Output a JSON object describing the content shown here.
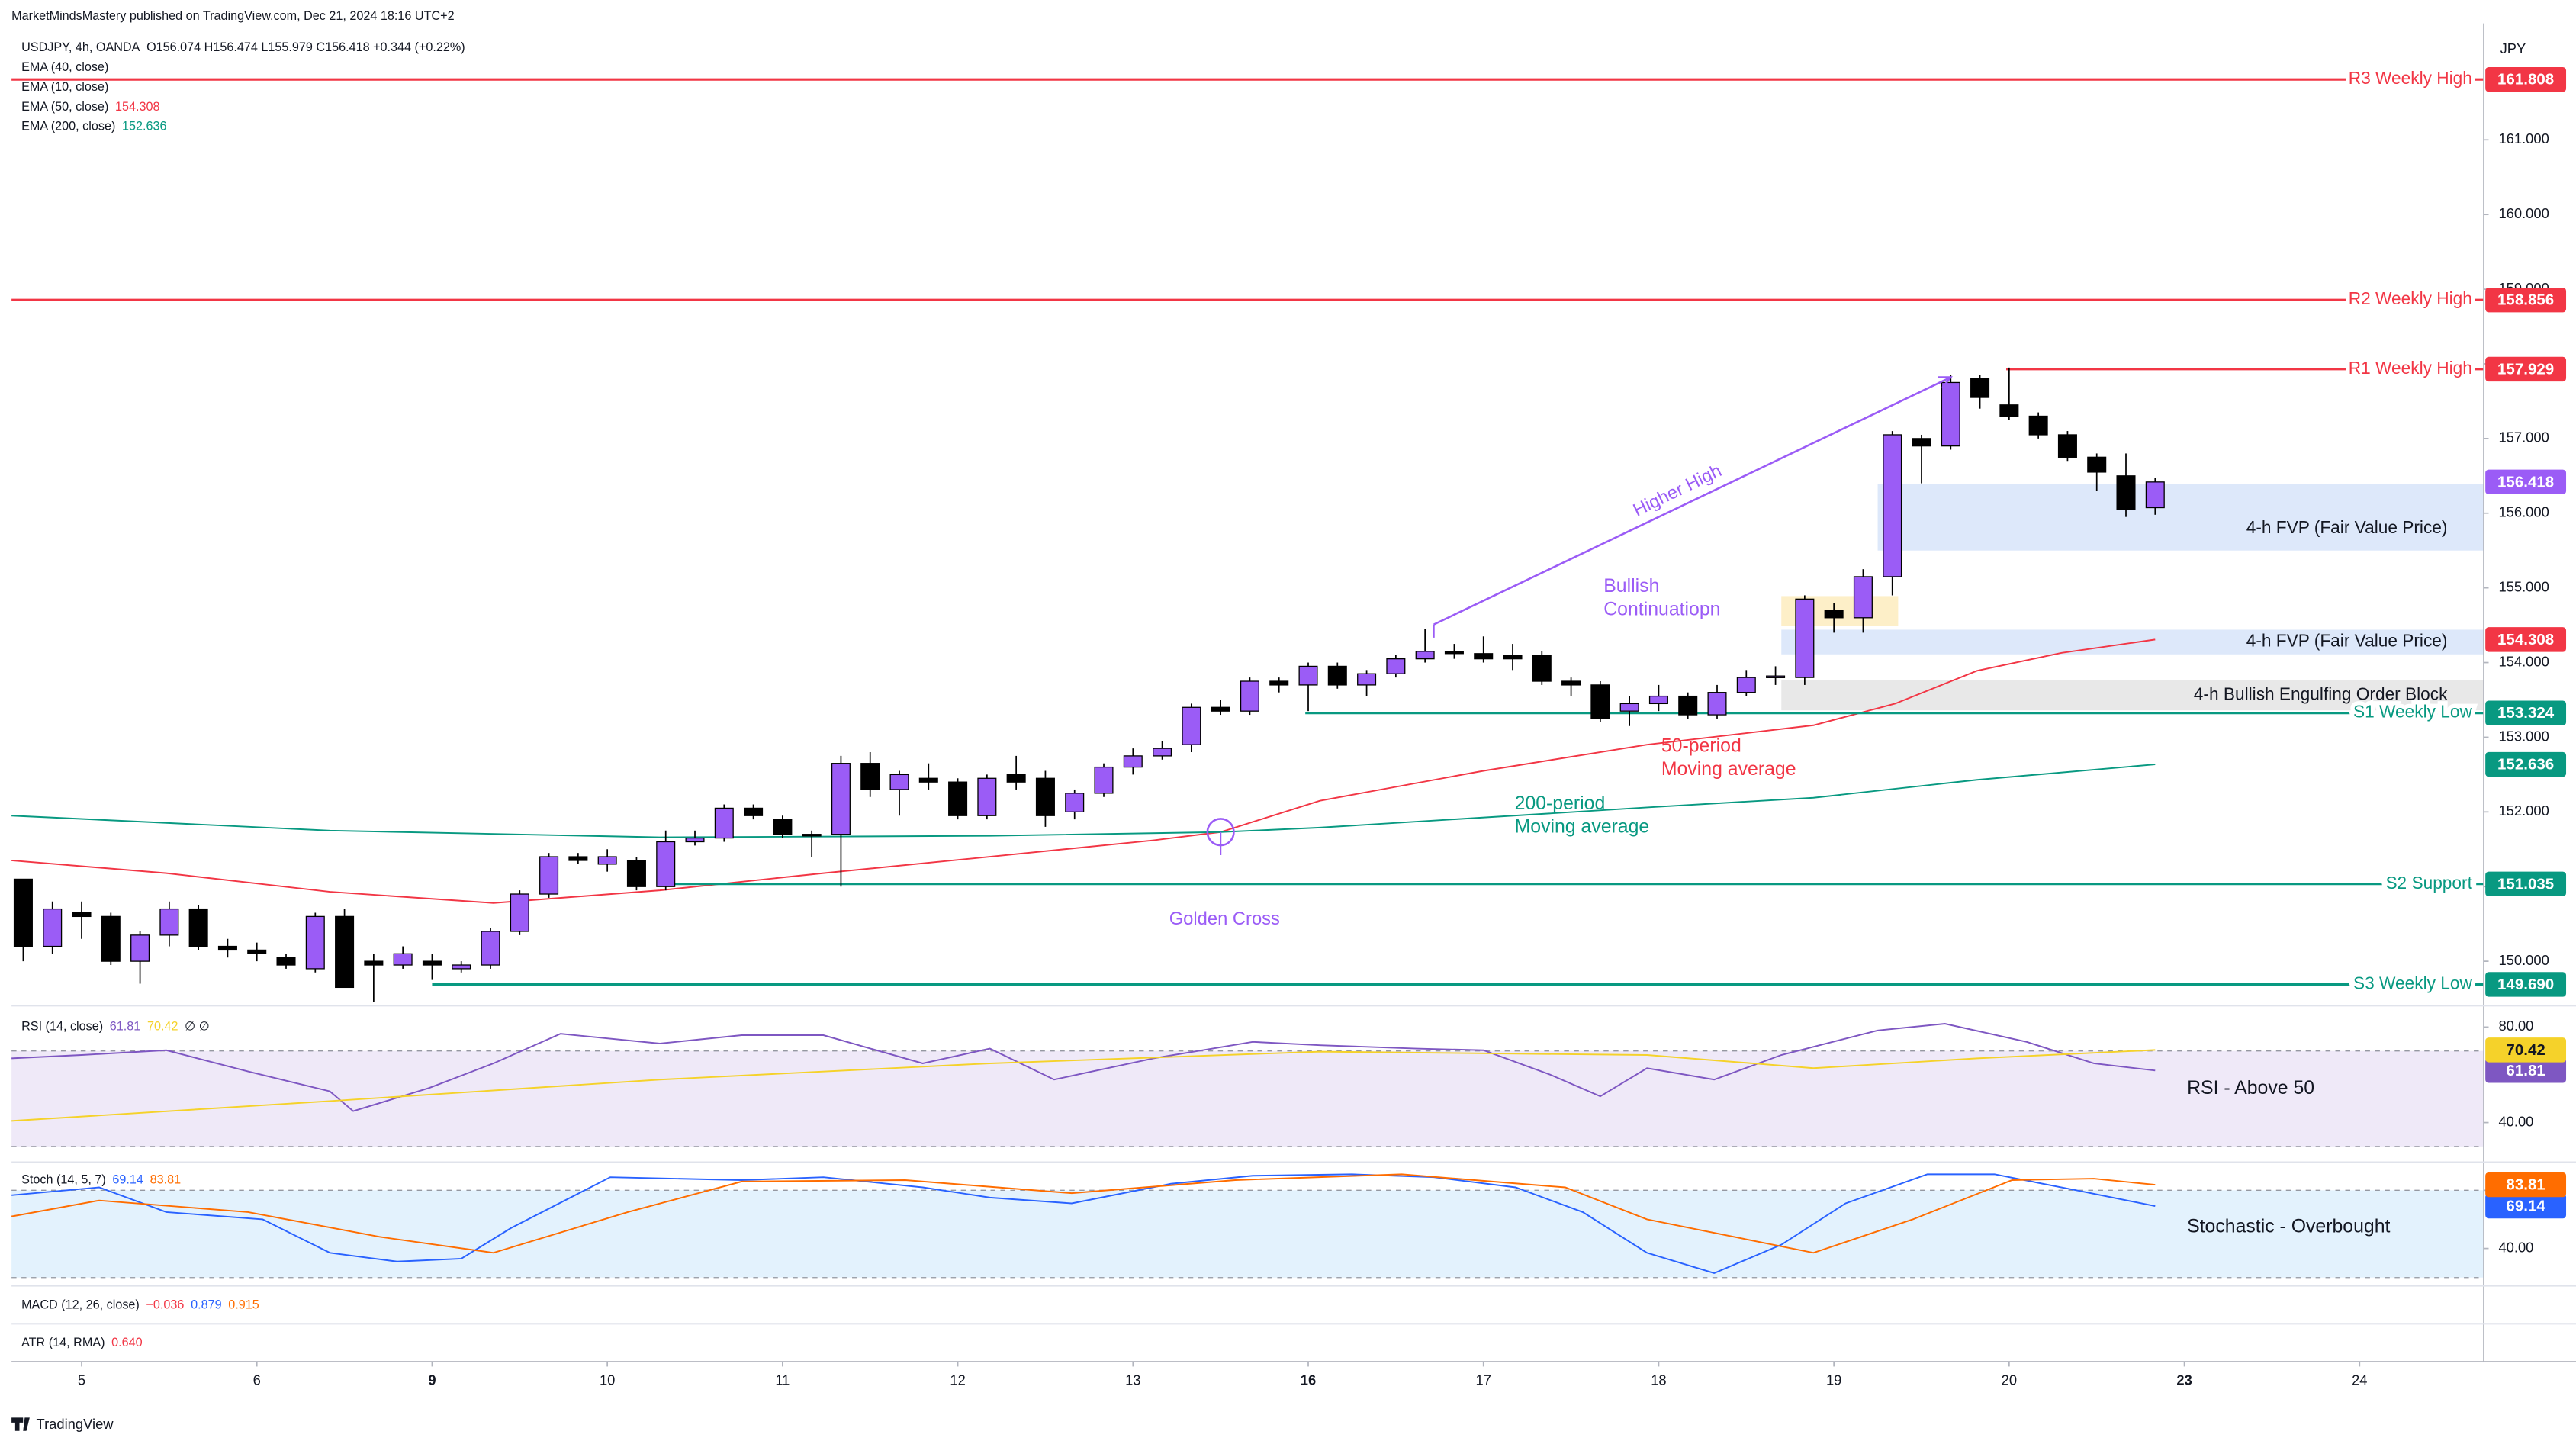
{
  "header": {
    "publisher": "MarketMindsMastery published on TradingView.com, Dec 21, 2024 18:16 UTC+2",
    "brand": "TradingView"
  },
  "collapsed_panes": [
    {
      "title": "MACD (12, 26, close)",
      "readings": [
        {
          "text": "−0.036",
          "color": "#f23645"
        },
        {
          "text": "0.879",
          "color": "#2962ff"
        },
        {
          "text": "0.915",
          "color": "#ff6d00"
        }
      ]
    },
    {
      "title": "ATR (14, RMA)",
      "readings": [
        {
          "text": "0.640",
          "color": "#f23645"
        }
      ]
    }
  ],
  "chart_data": [
    {
      "type": "candlestick",
      "title": "USDJPY, 4h, OANDA",
      "quote": "O156.074  H156.474  L155.979  C156.418  +0.344 (+0.22%)",
      "currency": "JPY",
      "up_color": "#9b5cf6",
      "down_color": "#000000",
      "x": [
        0,
        1,
        2,
        3,
        4,
        5,
        6,
        7,
        8,
        9,
        10,
        11,
        12,
        13,
        14,
        15,
        16,
        17,
        18,
        19,
        20,
        21,
        22,
        23,
        24,
        25,
        26,
        27,
        28,
        29,
        30,
        31,
        32,
        33,
        34,
        35,
        36,
        37,
        38,
        39,
        40,
        41,
        42,
        43,
        44,
        45,
        46,
        47,
        48,
        49,
        50,
        51,
        52,
        53,
        54,
        55,
        56,
        57,
        58,
        59,
        60,
        61,
        62,
        63,
        64,
        65,
        66,
        67,
        68,
        69,
        70,
        71,
        72,
        73
      ],
      "open": [
        151.1,
        150.2,
        150.65,
        150.6,
        150.0,
        150.35,
        150.7,
        150.2,
        150.15,
        150.05,
        149.9,
        150.6,
        150.0,
        149.95,
        150.0,
        149.9,
        149.95,
        150.4,
        150.9,
        151.4,
        151.3,
        151.35,
        151.0,
        151.6,
        151.65,
        152.05,
        151.9,
        151.7,
        151.7,
        152.65,
        152.3,
        152.45,
        152.4,
        151.95,
        152.5,
        152.45,
        152.0,
        152.25,
        152.6,
        152.75,
        152.9,
        153.4,
        153.35,
        153.75,
        153.7,
        153.95,
        153.7,
        153.85,
        154.05,
        154.15,
        154.12,
        154.1,
        154.1,
        153.75,
        153.7,
        153.35,
        153.45,
        153.55,
        153.3,
        153.6,
        153.8,
        153.8,
        154.7,
        154.6,
        155.15,
        157.0,
        156.9,
        157.8,
        157.45,
        157.3,
        157.05,
        156.75,
        156.5,
        156.074
      ],
      "high": [
        151.1,
        150.8,
        150.8,
        150.65,
        150.4,
        150.8,
        150.75,
        150.3,
        150.25,
        150.1,
        150.65,
        150.7,
        150.1,
        150.2,
        150.1,
        150.0,
        150.45,
        150.95,
        151.45,
        151.45,
        151.5,
        151.4,
        151.75,
        151.75,
        152.1,
        152.1,
        151.95,
        151.75,
        152.75,
        152.8,
        152.55,
        152.65,
        152.45,
        152.5,
        152.75,
        152.55,
        152.3,
        152.65,
        152.85,
        152.95,
        153.45,
        153.5,
        153.8,
        153.8,
        154.0,
        154.0,
        153.9,
        154.1,
        154.45,
        154.25,
        154.35,
        154.25,
        154.15,
        153.8,
        153.75,
        153.55,
        153.7,
        153.6,
        153.7,
        153.9,
        153.95,
        154.9,
        154.8,
        155.25,
        157.1,
        157.05,
        157.85,
        157.85,
        157.95,
        157.35,
        157.1,
        156.8,
        156.8,
        156.474
      ],
      "low": [
        150.0,
        150.1,
        150.3,
        149.95,
        149.7,
        150.2,
        150.15,
        150.05,
        150.0,
        149.9,
        149.85,
        149.65,
        149.45,
        149.9,
        149.75,
        149.85,
        149.9,
        150.35,
        150.85,
        151.3,
        151.2,
        150.95,
        150.95,
        151.55,
        151.6,
        151.9,
        151.65,
        151.4,
        151.0,
        152.2,
        151.95,
        152.3,
        151.9,
        151.9,
        152.3,
        151.8,
        151.9,
        152.2,
        152.5,
        152.7,
        152.8,
        153.3,
        153.3,
        153.6,
        153.35,
        153.65,
        153.55,
        153.8,
        154.0,
        154.05,
        154.0,
        153.9,
        153.7,
        153.55,
        153.2,
        153.15,
        153.35,
        153.25,
        153.25,
        153.55,
        153.7,
        153.7,
        154.4,
        154.4,
        154.9,
        156.4,
        156.85,
        157.4,
        157.25,
        157.0,
        156.7,
        156.3,
        155.95,
        155.979
      ],
      "close": [
        150.2,
        150.7,
        150.6,
        150.0,
        150.35,
        150.7,
        150.2,
        150.15,
        150.1,
        149.95,
        150.6,
        149.65,
        149.95,
        150.1,
        149.95,
        149.95,
        150.4,
        150.9,
        151.4,
        151.35,
        151.4,
        151.0,
        151.6,
        151.65,
        152.05,
        151.95,
        151.7,
        151.68,
        152.65,
        152.3,
        152.5,
        152.4,
        151.95,
        152.45,
        152.4,
        151.95,
        152.25,
        152.6,
        152.75,
        152.85,
        153.4,
        153.35,
        153.75,
        153.7,
        153.95,
        153.7,
        153.85,
        154.05,
        154.15,
        154.12,
        154.05,
        154.05,
        153.75,
        153.7,
        153.25,
        153.45,
        153.55,
        153.3,
        153.6,
        153.8,
        153.82,
        154.85,
        154.6,
        155.15,
        157.05,
        156.9,
        157.75,
        157.55,
        157.3,
        157.05,
        156.75,
        156.55,
        156.05,
        156.418
      ],
      "xlim": [
        -0.4,
        84.25
      ],
      "ylim": [
        149.45,
        162.56
      ],
      "xticks": [
        {
          "value": 2,
          "label": "5"
        },
        {
          "value": 8,
          "label": "6"
        },
        {
          "value": 14,
          "label": "9"
        },
        {
          "value": 20,
          "label": "10"
        },
        {
          "value": 26,
          "label": "11"
        },
        {
          "value": 32,
          "label": "12"
        },
        {
          "value": 38,
          "label": "13"
        },
        {
          "value": 44,
          "label": "16"
        },
        {
          "value": 50,
          "label": "17"
        },
        {
          "value": 56,
          "label": "18"
        },
        {
          "value": 62,
          "label": "19"
        },
        {
          "value": 68,
          "label": "20"
        },
        {
          "value": 74,
          "label": "23"
        },
        {
          "value": 80,
          "label": "24"
        }
      ],
      "yticks": [
        {
          "value": 150,
          "label": "150.000"
        },
        {
          "value": 151,
          "label": "151.000"
        },
        {
          "value": 152,
          "label": "152.000"
        },
        {
          "value": 153,
          "label": "153.000"
        },
        {
          "value": 154,
          "label": "154.000"
        },
        {
          "value": 155,
          "label": "155.000"
        },
        {
          "value": 156,
          "label": "156.000"
        },
        {
          "value": 157,
          "label": "157.000"
        },
        {
          "value": 158,
          "label": "158.000"
        },
        {
          "value": 159,
          "label": "159.000"
        },
        {
          "value": 160,
          "label": "160.000"
        },
        {
          "value": 161,
          "label": "161.000"
        }
      ],
      "series": [
        {
          "name": "EMA (40, close)"
        },
        {
          "name": "EMA (10, close)"
        },
        {
          "name": "EMA (50, close)",
          "color": "#f23645",
          "x": [
            -0.4,
            4.9,
            10.5,
            16.1,
            21.8,
            27.4,
            33.1,
            38.7,
            41.0,
            44.4,
            50.0,
            55.6,
            61.3,
            64.1,
            66.9,
            69.8,
            73.0
          ],
          "values": [
            151.35,
            151.18,
            150.93,
            150.78,
            150.95,
            151.18,
            151.4,
            151.62,
            151.73,
            152.15,
            152.55,
            152.9,
            153.16,
            153.45,
            153.89,
            154.13,
            154.308
          ]
        },
        {
          "name": "EMA (200, close)",
          "color": "#089981",
          "x": [
            -0.4,
            10.5,
            21.8,
            33.1,
            41.0,
            44.4,
            55.6,
            61.3,
            66.9,
            73.0
          ],
          "values": [
            151.95,
            151.75,
            151.66,
            151.68,
            151.73,
            151.79,
            152.06,
            152.19,
            152.43,
            152.636
          ]
        }
      ],
      "levels": [
        {
          "name": "R3 Weekly High",
          "price": 161.808,
          "color": "#f23645",
          "start": -0.4
        },
        {
          "name": "R2 Weekly High",
          "price": 158.856,
          "color": "#f23645",
          "start": -0.4
        },
        {
          "name": "R1 Weekly High",
          "price": 157.929,
          "color": "#f23645",
          "start": 67.9
        },
        {
          "name": "S1 Weekly Low",
          "price": 153.324,
          "color": "#089981",
          "start": 43.9
        },
        {
          "name": "S2 Support",
          "price": 151.035,
          "color": "#089981",
          "start": 22.0
        },
        {
          "name": "S3 Weekly Low",
          "price": {
            "value": 149.69,
            "label": "149.690"
          },
          "color": "#089981",
          "start": 14.0
        }
      ],
      "zones": [
        {
          "label": "4-h FVP (Fair Value Price)",
          "start": 63.5,
          "top": 156.39,
          "bottom": 155.5,
          "color": "#dde8fa"
        },
        {
          "label": "4-h FVP (Fair Value Price)",
          "start": 60.2,
          "top": 154.44,
          "bottom": 154.11,
          "color": "#dde8fa"
        },
        {
          "label": "4-h Bullish Engulfing Order Block",
          "start": 60.2,
          "top": 153.76,
          "bottom": 153.36,
          "color": "#e8e8e8"
        },
        {
          "start": 60.2,
          "end": 64.2,
          "top": 154.89,
          "bottom": 154.49,
          "color": "#fdefc8"
        }
      ],
      "annotations": [
        {
          "text": "Higher High",
          "color": "#9b5cf6",
          "x": [
            48.3,
            66.0
          ],
          "y": [
            154.51,
            157.82
          ]
        },
        {
          "lines": [
            "Bullish",
            "Continuatiopn"
          ],
          "color": "#9b5cf6"
        },
        {
          "lines": [
            "50-period",
            "Moving average"
          ],
          "color": "#f23645"
        },
        {
          "lines": [
            "200-period",
            "Moving average"
          ],
          "color": "#089981"
        },
        {
          "text": "Golden Cross",
          "color": "#9b5cf6",
          "x": 41.0,
          "y": 151.73
        }
      ]
    },
    {
      "type": "line",
      "title": "RSI (14, close)",
      "legend_extra": "∅ ∅",
      "note": "RSI -  Above 50",
      "ylim": [
        23.4,
        87.6
      ],
      "yticks": [
        {
          "value": 80,
          "label": "80.00"
        },
        {
          "value": 40,
          "label": "40.00"
        }
      ],
      "bands": [
        30,
        70
      ],
      "band_color": "#efe9f8",
      "series": [
        {
          "color": "#7e57c2",
          "x": [
            -0.4,
            2.0,
            4.9,
            7.7,
            10.5,
            11.3,
            13.9,
            16.1,
            18.4,
            21.8,
            24.6,
            27.4,
            30.8,
            33.1,
            35.3,
            38.7,
            42.1,
            44.4,
            47.7,
            50.0,
            52.3,
            54.0,
            55.6,
            57.9,
            60.2,
            63.5,
            65.8,
            68.6,
            70.9,
            73.0
          ],
          "values": [
            66.9,
            68.3,
            70.3,
            61.4,
            53.1,
            44.8,
            54.5,
            64.8,
            77.2,
            73.1,
            76.6,
            76.6,
            64.8,
            71,
            58,
            66.9,
            73.8,
            72.4,
            71,
            70.3,
            60,
            51,
            62.8,
            58,
            68.3,
            78.6,
            81.4,
            73.8,
            64.8,
            61.81
          ]
        },
        {
          "color": "#f5d22a",
          "x": [
            -0.4,
            10.5,
            21.8,
            33.1,
            44.4,
            55.6,
            61.3,
            66.9,
            73.0
          ],
          "values": [
            40.7,
            49,
            58,
            64.8,
            69.7,
            68.3,
            62.8,
            66.9,
            70.42
          ]
        }
      ]
    },
    {
      "type": "line",
      "title": "Stoch (14, 5, 7)",
      "note": "Stochastic - Overbought",
      "ylim": [
        14.3,
        99.3
      ],
      "yticks": [
        {
          "value": 80,
          "label": "80.00"
        },
        {
          "value": 40,
          "label": "40.00"
        }
      ],
      "bands": [
        20,
        80
      ],
      "band_color": "#e3f2fd",
      "series": [
        {
          "color": "#2962ff",
          "x": [
            -0.4,
            2.6,
            4.9,
            8.2,
            10.5,
            12.8,
            15.0,
            16.7,
            20.1,
            24.6,
            27.4,
            30.8,
            33.1,
            35.9,
            39.3,
            42.1,
            45.5,
            48.3,
            51.1,
            53.4,
            55.6,
            57.9,
            60.2,
            62.4,
            65.2,
            67.5,
            70.3,
            73.0
          ],
          "values": [
            76.6,
            82,
            65,
            60,
            37,
            31,
            33,
            54,
            89,
            87,
            89,
            82,
            75,
            71,
            84.5,
            90,
            91,
            89,
            82,
            65,
            37,
            23,
            42.6,
            71,
            91,
            91,
            80,
            69.14
          ]
        },
        {
          "color": "#ff6d00",
          "x": [
            -0.4,
            2.6,
            7.7,
            12.2,
            16.1,
            20.7,
            24.6,
            30.2,
            35.9,
            41.5,
            47.2,
            52.8,
            55.6,
            61.3,
            64.7,
            68.1,
            70.9,
            73.0
          ],
          "values": [
            62,
            73,
            65,
            48,
            37,
            65,
            86,
            87,
            78,
            87,
            91,
            82,
            60,
            37,
            60,
            87,
            88,
            83.81
          ]
        }
      ]
    }
  ]
}
